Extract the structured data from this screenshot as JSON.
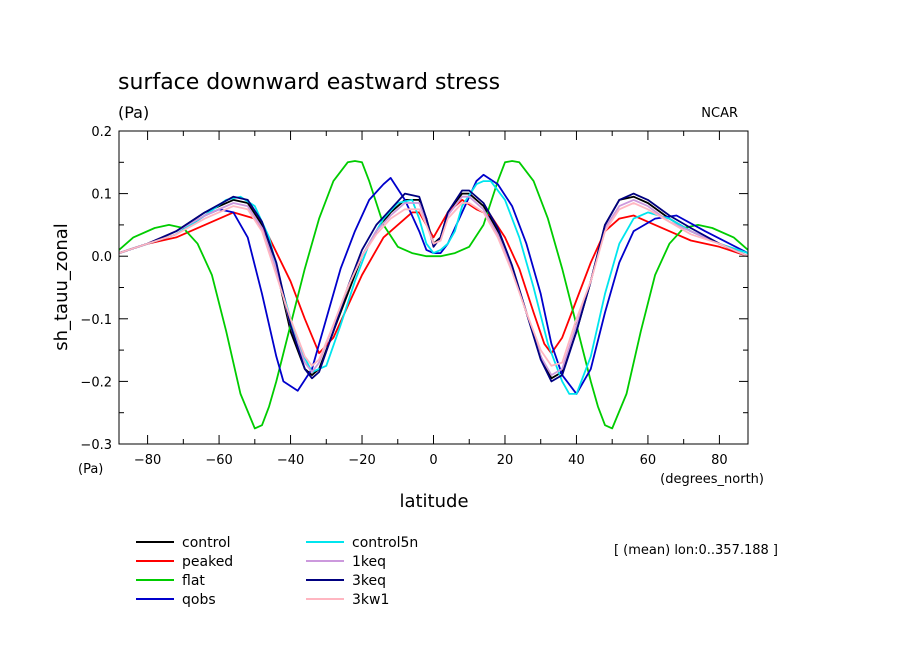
{
  "chart_data": {
    "type": "line",
    "title": "surface downward eastward stress",
    "units_label": "(Pa)",
    "source_label": "NCAR",
    "ylabel": "sh_tauu_zonal",
    "y_units": "(Pa)",
    "xlabel": "latitude",
    "x_units": "(degrees_north)",
    "annotation": "[ (mean) lon:0..357.188 ]",
    "xlim": [
      -88,
      88
    ],
    "ylim": [
      -0.3,
      0.2
    ],
    "x_ticks": [
      -80,
      -60,
      -40,
      -20,
      0,
      20,
      40,
      60,
      80
    ],
    "x_tick_labels": [
      "−80",
      "−60",
      "−40",
      "−20",
      "0",
      "20",
      "40",
      "60",
      "80"
    ],
    "y_ticks": [
      -0.3,
      -0.2,
      -0.1,
      0.0,
      0.1,
      0.2
    ],
    "y_tick_labels": [
      "−0.3",
      "−0.2",
      "−0.1",
      "0.0",
      "0.1",
      "0.2"
    ],
    "grid": false,
    "legend_position": "bottom-left",
    "series": [
      {
        "name": "control",
        "color": "#000000",
        "x": [
          -88,
          -80,
          -72,
          -64,
          -56,
          -52,
          -48,
          -44,
          -40,
          -36,
          -34,
          -32,
          -28,
          -24,
          -20,
          -16,
          -12,
          -8,
          -4,
          -2,
          0,
          2,
          4,
          8,
          10,
          14,
          18,
          22,
          26,
          30,
          33,
          36,
          40,
          44,
          48,
          52,
          56,
          60,
          66,
          72,
          80,
          88
        ],
        "y": [
          0.005,
          0.02,
          0.04,
          0.07,
          0.09,
          0.085,
          0.05,
          -0.02,
          -0.12,
          -0.18,
          -0.19,
          -0.18,
          -0.12,
          -0.06,
          0.0,
          0.04,
          0.07,
          0.09,
          0.09,
          0.06,
          0.02,
          0.03,
          0.07,
          0.1,
          0.1,
          0.08,
          0.04,
          -0.02,
          -0.09,
          -0.16,
          -0.195,
          -0.185,
          -0.12,
          -0.04,
          0.05,
          0.09,
          0.095,
          0.085,
          0.06,
          0.04,
          0.02,
          0.0
        ]
      },
      {
        "name": "peaked",
        "color": "#ff0000",
        "x": [
          -88,
          -80,
          -72,
          -64,
          -56,
          -50,
          -46,
          -40,
          -36,
          -32,
          -28,
          -24,
          -20,
          -14,
          -10,
          -6,
          -4,
          -2,
          0,
          2,
          4,
          8,
          12,
          16,
          20,
          24,
          28,
          31,
          33,
          36,
          40,
          44,
          48,
          52,
          56,
          60,
          66,
          72,
          80,
          88
        ],
        "y": [
          0.005,
          0.02,
          0.03,
          0.05,
          0.07,
          0.06,
          0.03,
          -0.04,
          -0.1,
          -0.155,
          -0.13,
          -0.08,
          -0.03,
          0.03,
          0.05,
          0.07,
          0.07,
          0.05,
          0.03,
          0.05,
          0.07,
          0.09,
          0.075,
          0.065,
          0.03,
          -0.02,
          -0.09,
          -0.14,
          -0.155,
          -0.13,
          -0.07,
          -0.01,
          0.04,
          0.06,
          0.065,
          0.055,
          0.04,
          0.025,
          0.015,
          0.0
        ]
      },
      {
        "name": "flat",
        "color": "#00cc00",
        "x": [
          -88,
          -84,
          -78,
          -74,
          -70,
          -66,
          -62,
          -58,
          -54,
          -50,
          -48,
          -46,
          -44,
          -40,
          -36,
          -32,
          -28,
          -24,
          -22,
          -20,
          -18,
          -14,
          -10,
          -6,
          -2,
          0,
          2,
          6,
          10,
          14,
          18,
          20,
          22,
          24,
          28,
          32,
          36,
          40,
          44,
          46,
          48,
          50,
          54,
          58,
          62,
          66,
          70,
          74,
          78,
          84,
          88
        ],
        "y": [
          0.01,
          0.03,
          0.045,
          0.05,
          0.045,
          0.02,
          -0.03,
          -0.12,
          -0.22,
          -0.275,
          -0.27,
          -0.24,
          -0.2,
          -0.11,
          -0.02,
          0.06,
          0.12,
          0.15,
          0.152,
          0.15,
          0.12,
          0.05,
          0.015,
          0.005,
          0.0,
          0.0,
          0.0,
          0.005,
          0.015,
          0.05,
          0.12,
          0.15,
          0.152,
          0.15,
          0.12,
          0.06,
          -0.02,
          -0.11,
          -0.2,
          -0.24,
          -0.27,
          -0.275,
          -0.22,
          -0.12,
          -0.03,
          0.02,
          0.045,
          0.05,
          0.045,
          0.03,
          0.01
        ]
      },
      {
        "name": "qobs",
        "color": "#0000cc",
        "x": [
          -88,
          -80,
          -72,
          -64,
          -60,
          -56,
          -52,
          -48,
          -44,
          -42,
          -38,
          -34,
          -30,
          -26,
          -22,
          -18,
          -14,
          -12,
          -8,
          -4,
          -2,
          0,
          2,
          4,
          8,
          12,
          14,
          18,
          22,
          26,
          30,
          33,
          36,
          40,
          44,
          48,
          52,
          56,
          62,
          68,
          76,
          88
        ],
        "y": [
          0.005,
          0.02,
          0.035,
          0.065,
          0.075,
          0.07,
          0.03,
          -0.06,
          -0.16,
          -0.2,
          -0.215,
          -0.18,
          -0.1,
          -0.02,
          0.04,
          0.09,
          0.115,
          0.125,
          0.09,
          0.04,
          0.01,
          0.005,
          0.005,
          0.02,
          0.07,
          0.12,
          0.13,
          0.115,
          0.08,
          0.02,
          -0.06,
          -0.14,
          -0.19,
          -0.22,
          -0.18,
          -0.09,
          -0.01,
          0.04,
          0.06,
          0.065,
          0.04,
          0.005
        ]
      },
      {
        "name": "control5n",
        "color": "#00e5ee",
        "x": [
          -88,
          -80,
          -72,
          -64,
          -58,
          -54,
          -50,
          -46,
          -42,
          -38,
          -34,
          -30,
          -26,
          -22,
          -18,
          -14,
          -10,
          -6,
          -4,
          -2,
          0,
          2,
          4,
          6,
          8,
          12,
          14,
          16,
          20,
          24,
          28,
          32,
          36,
          38,
          40,
          44,
          48,
          52,
          56,
          60,
          66,
          72,
          80,
          88
        ],
        "y": [
          0.005,
          0.02,
          0.035,
          0.065,
          0.09,
          0.095,
          0.08,
          0.03,
          -0.06,
          -0.14,
          -0.185,
          -0.175,
          -0.11,
          -0.04,
          0.02,
          0.06,
          0.085,
          0.09,
          0.06,
          0.02,
          0.005,
          0.01,
          0.02,
          0.04,
          0.08,
          0.115,
          0.12,
          0.12,
          0.09,
          0.03,
          -0.05,
          -0.14,
          -0.2,
          -0.22,
          -0.22,
          -0.16,
          -0.06,
          0.02,
          0.06,
          0.07,
          0.06,
          0.04,
          0.02,
          0.005
        ]
      },
      {
        "name": "1keq",
        "color": "#cc99dd",
        "x": [
          -88,
          -80,
          -72,
          -64,
          -56,
          -52,
          -48,
          -44,
          -40,
          -36,
          -34,
          -32,
          -28,
          -24,
          -20,
          -16,
          -12,
          -8,
          -4,
          -2,
          0,
          2,
          4,
          8,
          10,
          14,
          18,
          22,
          26,
          30,
          33,
          36,
          40,
          44,
          48,
          52,
          56,
          60,
          66,
          72,
          80,
          88
        ],
        "y": [
          0.005,
          0.02,
          0.04,
          0.065,
          0.085,
          0.08,
          0.045,
          -0.02,
          -0.11,
          -0.17,
          -0.185,
          -0.17,
          -0.11,
          -0.05,
          0.0,
          0.04,
          0.065,
          0.085,
          0.085,
          0.055,
          0.02,
          0.025,
          0.065,
          0.095,
          0.095,
          0.075,
          0.035,
          -0.02,
          -0.09,
          -0.16,
          -0.19,
          -0.18,
          -0.11,
          -0.04,
          0.045,
          0.08,
          0.09,
          0.08,
          0.055,
          0.04,
          0.02,
          0.0
        ]
      },
      {
        "name": "3keq",
        "color": "#000080",
        "x": [
          -88,
          -80,
          -72,
          -64,
          -56,
          -52,
          -48,
          -44,
          -40,
          -36,
          -34,
          -32,
          -28,
          -24,
          -20,
          -16,
          -12,
          -8,
          -4,
          -2,
          0,
          2,
          4,
          8,
          10,
          14,
          18,
          22,
          26,
          30,
          33,
          36,
          40,
          44,
          48,
          52,
          56,
          60,
          66,
          72,
          80,
          88
        ],
        "y": [
          0.005,
          0.02,
          0.04,
          0.07,
          0.095,
          0.09,
          0.055,
          -0.01,
          -0.11,
          -0.18,
          -0.195,
          -0.185,
          -0.12,
          -0.05,
          0.01,
          0.05,
          0.075,
          0.1,
          0.095,
          0.06,
          0.015,
          0.03,
          0.07,
          0.105,
          0.105,
          0.085,
          0.045,
          -0.015,
          -0.09,
          -0.165,
          -0.2,
          -0.19,
          -0.12,
          -0.04,
          0.05,
          0.09,
          0.1,
          0.09,
          0.065,
          0.045,
          0.02,
          0.0
        ]
      },
      {
        "name": "3kw1",
        "color": "#ffb6c1",
        "x": [
          -88,
          -80,
          -72,
          -64,
          -56,
          -52,
          -48,
          -44,
          -40,
          -36,
          -34,
          -32,
          -28,
          -24,
          -20,
          -16,
          -12,
          -8,
          -4,
          -2,
          0,
          2,
          4,
          8,
          10,
          14,
          18,
          22,
          26,
          30,
          33,
          36,
          40,
          44,
          48,
          52,
          56,
          60,
          66,
          72,
          80,
          88
        ],
        "y": [
          0.005,
          0.02,
          0.035,
          0.06,
          0.08,
          0.075,
          0.04,
          -0.03,
          -0.1,
          -0.16,
          -0.175,
          -0.165,
          -0.11,
          -0.05,
          0.0,
          0.035,
          0.06,
          0.075,
          0.075,
          0.05,
          0.02,
          0.025,
          0.06,
          0.085,
          0.085,
          0.07,
          0.03,
          -0.025,
          -0.09,
          -0.15,
          -0.175,
          -0.17,
          -0.1,
          -0.04,
          0.04,
          0.075,
          0.085,
          0.075,
          0.055,
          0.035,
          0.02,
          0.0
        ]
      }
    ]
  }
}
